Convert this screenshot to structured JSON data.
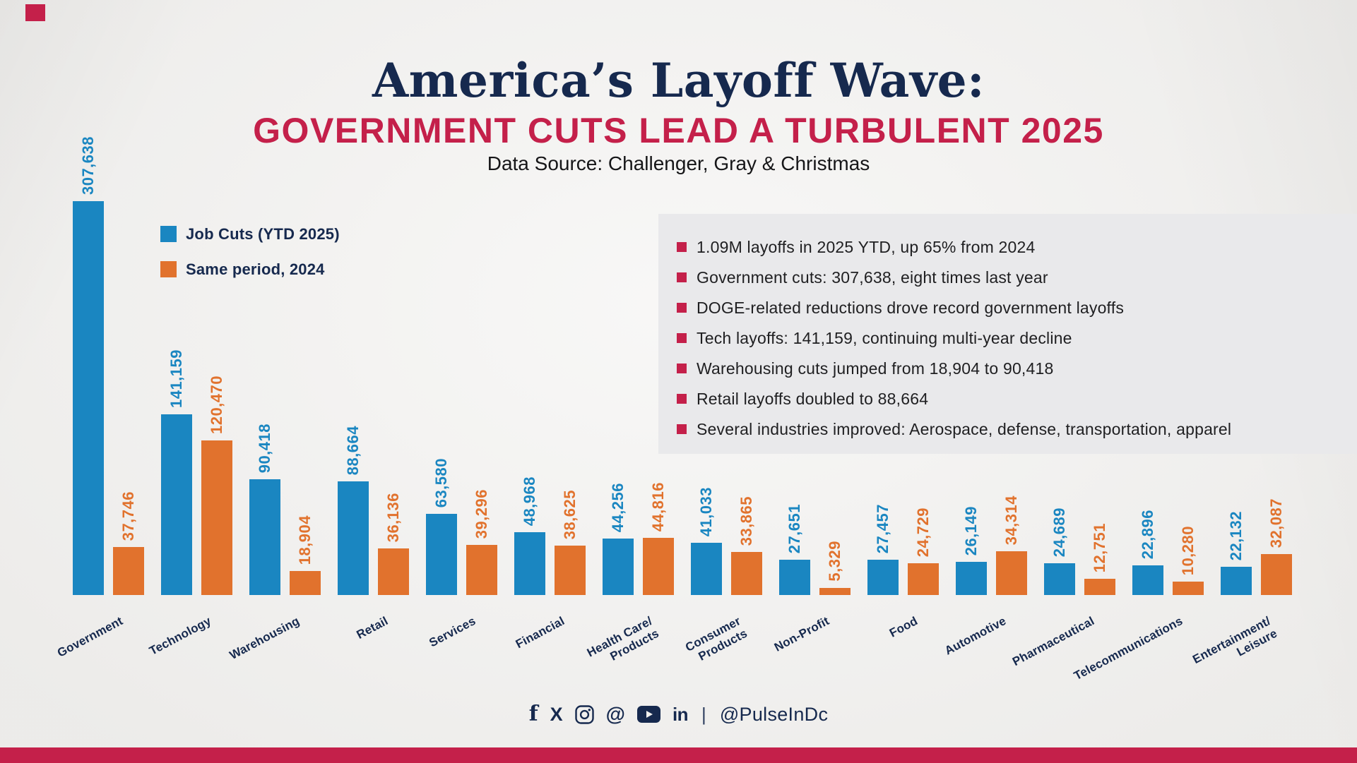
{
  "page": {
    "title": "America’s Layoff Wave:",
    "subtitle": "GOVERNMENT CUTS LEAD A TURBULENT 2025",
    "data_source": "Data Source: Challenger, Gray & Christmas"
  },
  "legend": {
    "items": [
      {
        "label": "Job Cuts (YTD 2025)",
        "color_key": "blue"
      },
      {
        "label": "Same period, 2024",
        "color_key": "orange"
      }
    ]
  },
  "highlights": {
    "items": [
      "1.09M layoffs in 2025 YTD, up 65% from 2024",
      "Government cuts: 307,638, eight times last year",
      "DOGE-related reductions drove record government layoffs",
      "Tech layoffs: 141,159, continuing multi-year decline",
      "Warehousing cuts jumped from 18,904 to 90,418",
      "Retail layoffs doubled to 88,664",
      "Several industries improved: Aerospace, defense, transportation, apparel"
    ]
  },
  "footer": {
    "handle": "@PulseInDc",
    "icons": [
      "facebook",
      "x",
      "instagram",
      "threads",
      "youtube",
      "linkedin"
    ]
  },
  "colors": {
    "navy": "#16294e",
    "crimson": "#c4204a",
    "blue": "#1a86c1",
    "orange": "#e1722d",
    "box_bg": "#e9e9eb",
    "text_dark": "#1f1f21",
    "background": "#f1f0ee"
  },
  "chart_data": {
    "type": "bar",
    "title": "America’s Layoff Wave: Government Cuts Lead a Turbulent 2025",
    "categories": [
      "Government",
      "Technology",
      "Warehousing",
      "Retail",
      "Services",
      "Financial",
      "Health Care/Products",
      "Consumer Products",
      "Non-Profit",
      "Food",
      "Automotive",
      "Pharmaceutical",
      "Telecommunications",
      "Entertainment/Leisure"
    ],
    "category_lines": [
      [
        "Government"
      ],
      [
        "Technology"
      ],
      [
        "Warehousing"
      ],
      [
        "Retail"
      ],
      [
        "Services"
      ],
      [
        "Financial"
      ],
      [
        "Health Care/",
        "Products"
      ],
      [
        "Consumer",
        "Products"
      ],
      [
        "Non-Profit"
      ],
      [
        "Food"
      ],
      [
        "Automotive"
      ],
      [
        "Pharmaceutical"
      ],
      [
        "Telecommunications"
      ],
      [
        "Entertainment/",
        "Leisure"
      ]
    ],
    "series": [
      {
        "name": "Job Cuts (YTD 2025)",
        "color_key": "blue",
        "values": [
          307638,
          141159,
          90418,
          88664,
          63580,
          48968,
          44256,
          41033,
          27651,
          27457,
          26149,
          24689,
          22896,
          22132
        ]
      },
      {
        "name": "Same period, 2024",
        "color_key": "orange",
        "values": [
          37746,
          120470,
          18904,
          36136,
          39296,
          38625,
          44816,
          33865,
          5329,
          24729,
          34314,
          12751,
          10280,
          32087
        ]
      }
    ],
    "ylim": [
      0,
      320000
    ],
    "grid": false,
    "legend_position": "upper-left",
    "value_labels": "rotated-vertical-above-bars",
    "x_tick_rotation_deg": -28
  }
}
